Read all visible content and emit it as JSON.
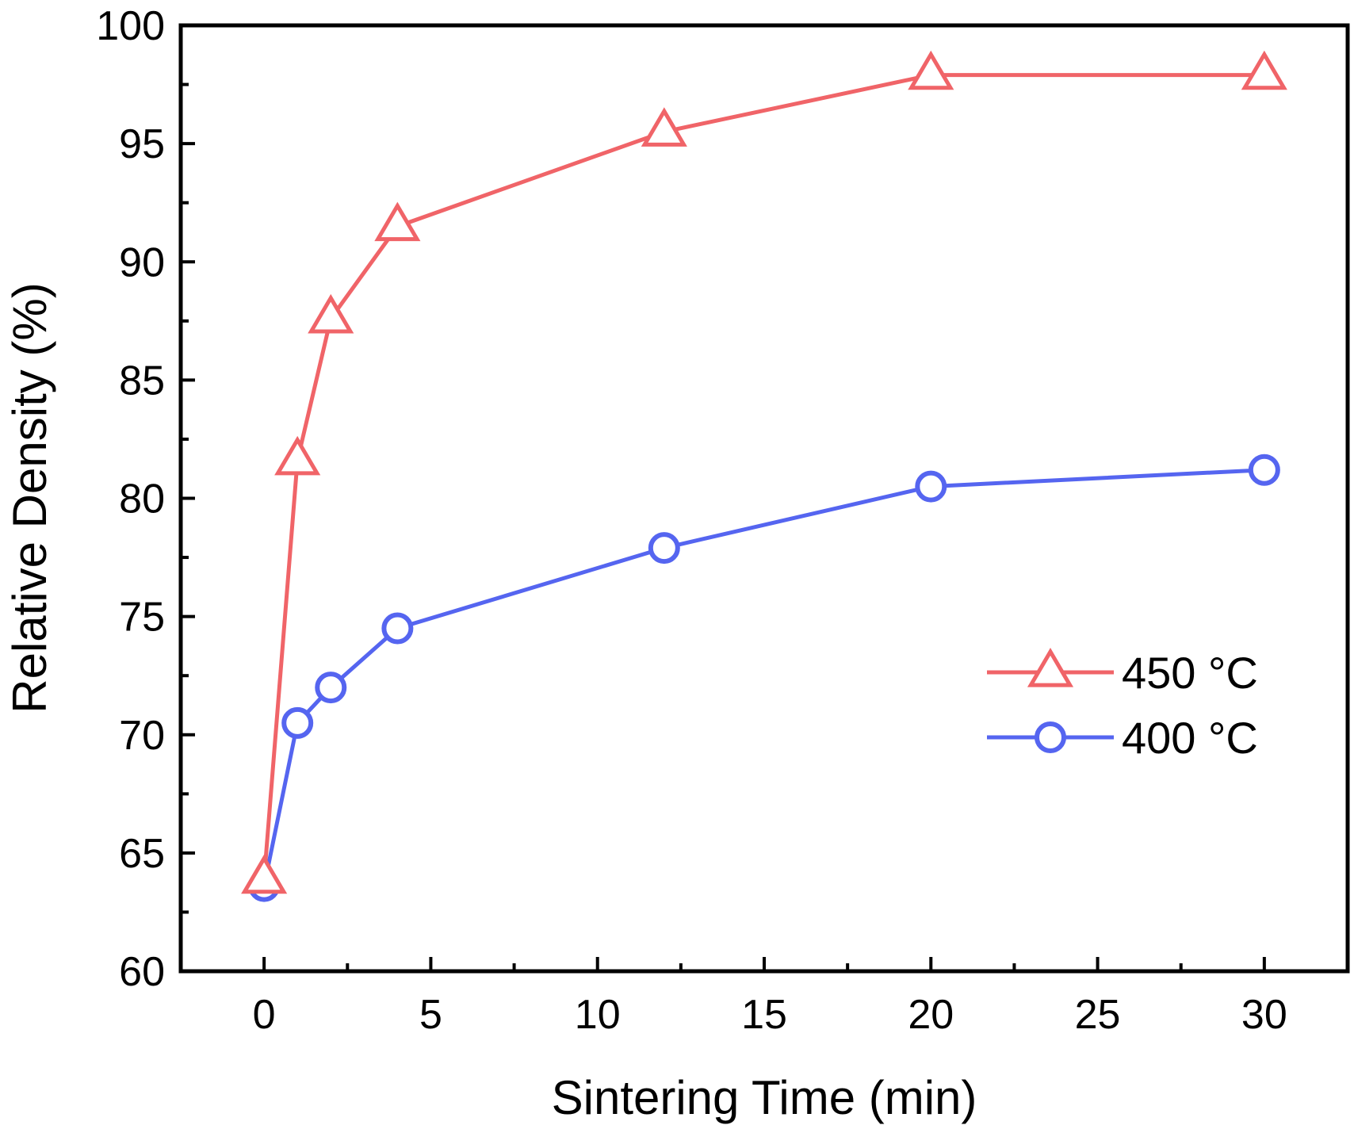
{
  "chart_data": {
    "type": "line",
    "title": "",
    "xlabel": "Sintering Time (min)",
    "ylabel": "Relative Density (%)",
    "xlim": [
      -2.5,
      32.5
    ],
    "ylim": [
      60,
      100
    ],
    "xticks": [
      0,
      5,
      10,
      15,
      20,
      25,
      30
    ],
    "yticks": [
      60,
      65,
      70,
      75,
      80,
      85,
      90,
      95,
      100
    ],
    "grid": false,
    "legend_position": "center-right",
    "series": [
      {
        "name": "450 °C",
        "marker": "triangle",
        "color": "#f06468",
        "x": [
          0,
          1,
          2,
          4,
          12,
          20,
          30
        ],
        "y": [
          63.9,
          81.6,
          87.6,
          91.5,
          95.5,
          97.9,
          97.9
        ]
      },
      {
        "name": "400 °C",
        "marker": "circle",
        "color": "#5565f0",
        "x": [
          0,
          1,
          2,
          4,
          12,
          20,
          30
        ],
        "y": [
          63.6,
          70.5,
          72.0,
          74.5,
          77.9,
          80.5,
          81.2
        ]
      }
    ]
  }
}
